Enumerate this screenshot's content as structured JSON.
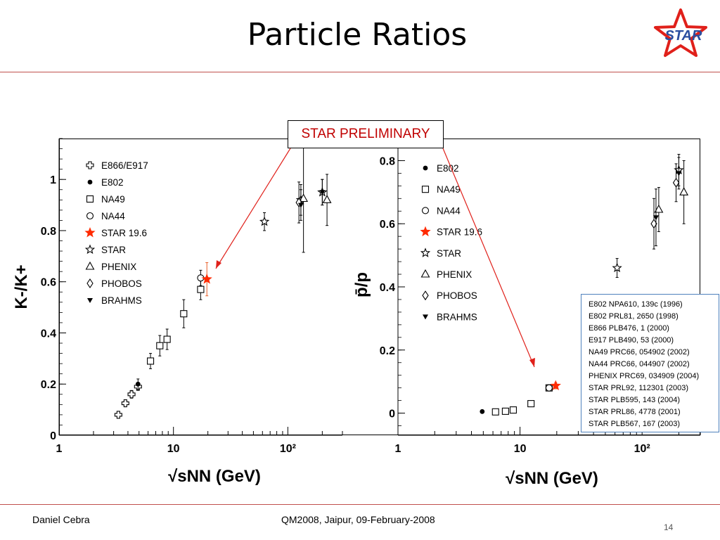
{
  "slide": {
    "title": "Particle Ratios",
    "logo_text": "STAR",
    "preliminary_label": "STAR PRELIMINARY",
    "footer_left": "Daniel Cebra",
    "footer_center": "QM2008, Jaipur, 09-February-2008",
    "page_number": "14",
    "accent_color": "#c0504d"
  },
  "references": [
    "E802 NPA610, 139c (1996)",
    "E802 PRL81, 2650 (1998)",
    "E866 PLB476, 1 (2000)",
    "E917 PLB490, 53 (2000)",
    "NA49 PRC66, 054902 (2002)",
    "NA44 PRC66, 044907 (2002)",
    "PHENIX PRC69, 034909 (2004)",
    "STAR PRL92, 112301 (2003)",
    "STAR PLB595, 143 (2004)",
    "STAR PRL86, 4778 (2001)",
    "STAR PLB567, 167 (2003)"
  ],
  "chart_data": [
    {
      "type": "scatter",
      "ylabel": "K-/K+",
      "xlabel": "√sNN (GeV)",
      "xscale": "log",
      "xlim": [
        1,
        300
      ],
      "ylim": [
        0,
        1.16
      ],
      "yticks": [
        "0",
        "0.2",
        "0.4",
        "0.6",
        "0.8",
        "1"
      ],
      "xticks": [
        "1",
        "10",
        "10²"
      ],
      "legend_position": "top-left",
      "series": [
        {
          "name": "E866/E917",
          "marker": "cross",
          "color": "#000000",
          "x": [
            3.3,
            3.8,
            4.3,
            4.9
          ],
          "y": [
            0.08,
            0.125,
            0.16,
            0.19
          ],
          "err": [
            0.01,
            0.01,
            0.015,
            0.015
          ]
        },
        {
          "name": "E802",
          "marker": "dot",
          "color": "#000000",
          "x": [
            4.9
          ],
          "y": [
            0.2
          ],
          "err": [
            0.02
          ]
        },
        {
          "name": "NA49",
          "marker": "square",
          "color": "#000000",
          "x": [
            6.3,
            7.6,
            8.8,
            12.3,
            17.3
          ],
          "y": [
            0.29,
            0.35,
            0.375,
            0.475,
            0.57
          ],
          "err": [
            0.03,
            0.04,
            0.04,
            0.055,
            0.04
          ]
        },
        {
          "name": "NA44",
          "marker": "circle",
          "color": "#000000",
          "x": [
            17.3
          ],
          "y": [
            0.615
          ],
          "err": [
            0.03
          ]
        },
        {
          "name": "STAR 19.6",
          "marker": "filled-star",
          "color": "#ff2a00",
          "x": [
            19.6
          ],
          "y": [
            0.61
          ],
          "err": [
            0.065
          ]
        },
        {
          "name": "STAR",
          "marker": "star",
          "color": "#000000",
          "x": [
            62.4,
            130,
            200
          ],
          "y": [
            0.835,
            0.92,
            0.95
          ],
          "err": [
            0.035,
            0.06,
            0.05
          ]
        },
        {
          "name": "PHENIX",
          "marker": "triangle",
          "color": "#000000",
          "x": [
            137,
            220
          ],
          "y": [
            0.925,
            0.92
          ],
          "err": [
            0.21,
            0.1
          ]
        },
        {
          "name": "PHOBOS",
          "marker": "diamond",
          "color": "#000000",
          "x": [
            125
          ],
          "y": [
            0.91
          ],
          "err": [
            0.08
          ]
        },
        {
          "name": "BRAHMS",
          "marker": "down-triangle",
          "color": "#000000",
          "x": [
            130,
            200
          ],
          "y": [
            0.9,
            0.95
          ],
          "err": [
            0.06,
            0.05
          ]
        }
      ]
    },
    {
      "type": "scatter",
      "ylabel": "p̄/p",
      "xlabel": "√sNN (GeV)",
      "xscale": "log",
      "xlim": [
        1,
        300
      ],
      "ylim": [
        -0.07,
        0.87
      ],
      "yticks": [
        "0",
        "0.2",
        "0.4",
        "0.6",
        "0.8"
      ],
      "xticks": [
        "1",
        "10",
        "10²"
      ],
      "legend_position": "top-left",
      "series": [
        {
          "name": "E802",
          "marker": "dot",
          "color": "#000000",
          "x": [
            4.9
          ],
          "y": [
            0.005
          ],
          "err": [
            0.003
          ]
        },
        {
          "name": "NA49",
          "marker": "square",
          "color": "#000000",
          "x": [
            6.3,
            7.6,
            8.8,
            12.3,
            17.3
          ],
          "y": [
            0.004,
            0.006,
            0.01,
            0.03,
            0.08
          ],
          "err": [
            0.003,
            0.003,
            0.004,
            0.005,
            0.008
          ]
        },
        {
          "name": "NA44",
          "marker": "circle",
          "color": "#000000",
          "x": [
            17.3
          ],
          "y": [
            0.08
          ],
          "err": [
            0.008
          ]
        },
        {
          "name": "STAR 19.6",
          "marker": "filled-star",
          "color": "#ff2a00",
          "x": [
            19.6
          ],
          "y": [
            0.087
          ],
          "err": [
            0.01
          ]
        },
        {
          "name": "STAR",
          "marker": "star",
          "color": "#000000",
          "x": [
            62.4,
            200
          ],
          "y": [
            0.46,
            0.77
          ],
          "err": [
            0.03,
            0.05
          ]
        },
        {
          "name": "PHENIX",
          "marker": "triangle",
          "color": "#000000",
          "x": [
            137,
            220
          ],
          "y": [
            0.645,
            0.7
          ],
          "err": [
            0.07,
            0.1
          ]
        },
        {
          "name": "PHOBOS",
          "marker": "diamond",
          "color": "#000000",
          "x": [
            125,
            190
          ],
          "y": [
            0.6,
            0.73
          ],
          "err": [
            0.08,
            0.06
          ]
        },
        {
          "name": "BRAHMS",
          "marker": "down-triangle",
          "color": "#000000",
          "x": [
            130,
            200
          ],
          "y": [
            0.62,
            0.76
          ],
          "err": [
            0.09,
            0.05
          ]
        }
      ]
    }
  ]
}
